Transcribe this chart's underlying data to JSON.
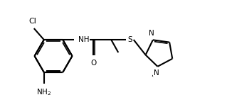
{
  "background_color": "#ffffff",
  "line_color": "#000000",
  "line_width": 1.5,
  "font_size": 7.5,
  "figsize": [
    3.19,
    1.58
  ],
  "dpi": 100,
  "xlim": [
    0,
    3.19
  ],
  "ylim": [
    0,
    1.58
  ]
}
